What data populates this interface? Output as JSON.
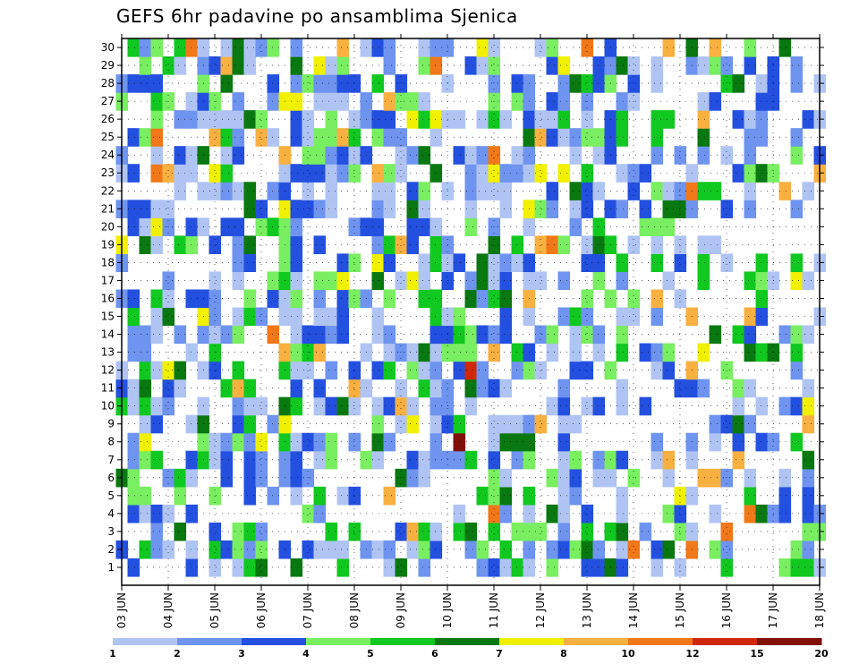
{
  "chart_data": {
    "type": "heatmap",
    "title": "GEFS 6hr padavine po ansamblima Sjenica",
    "y_ticks": [
      1,
      2,
      3,
      4,
      5,
      6,
      7,
      8,
      9,
      10,
      11,
      12,
      13,
      14,
      15,
      16,
      17,
      18,
      19,
      20,
      21,
      22,
      23,
      24,
      25,
      26,
      27,
      28,
      29,
      30
    ],
    "x_ticks": [
      "03 JUN",
      "04 JUN",
      "05 JUN",
      "06 JUN",
      "07 JUN",
      "08 JUN",
      "09 JUN",
      "10 JUN",
      "11 JUN",
      "12 JUN",
      "13 JUN",
      "14 JUN",
      "15 JUN",
      "16 JUN",
      "17 JUN",
      "18 JUN"
    ],
    "x_steps_per_day": 4,
    "x_steps": 61,
    "members": 30,
    "legend": {
      "placement": "bottom",
      "labels": [
        "1",
        "2",
        "3",
        "4",
        "5",
        "6",
        "7",
        "8",
        "10",
        "12",
        "15",
        "20"
      ],
      "colors": [
        "#b0c4f4",
        "#6e94f0",
        "#2450e0",
        "#78ee60",
        "#10c820",
        "#0a7810",
        "#f0f000",
        "#f8b040",
        "#f07818",
        "#d02808",
        "#801008"
      ]
    },
    "grid": true,
    "seed": 12345
  }
}
